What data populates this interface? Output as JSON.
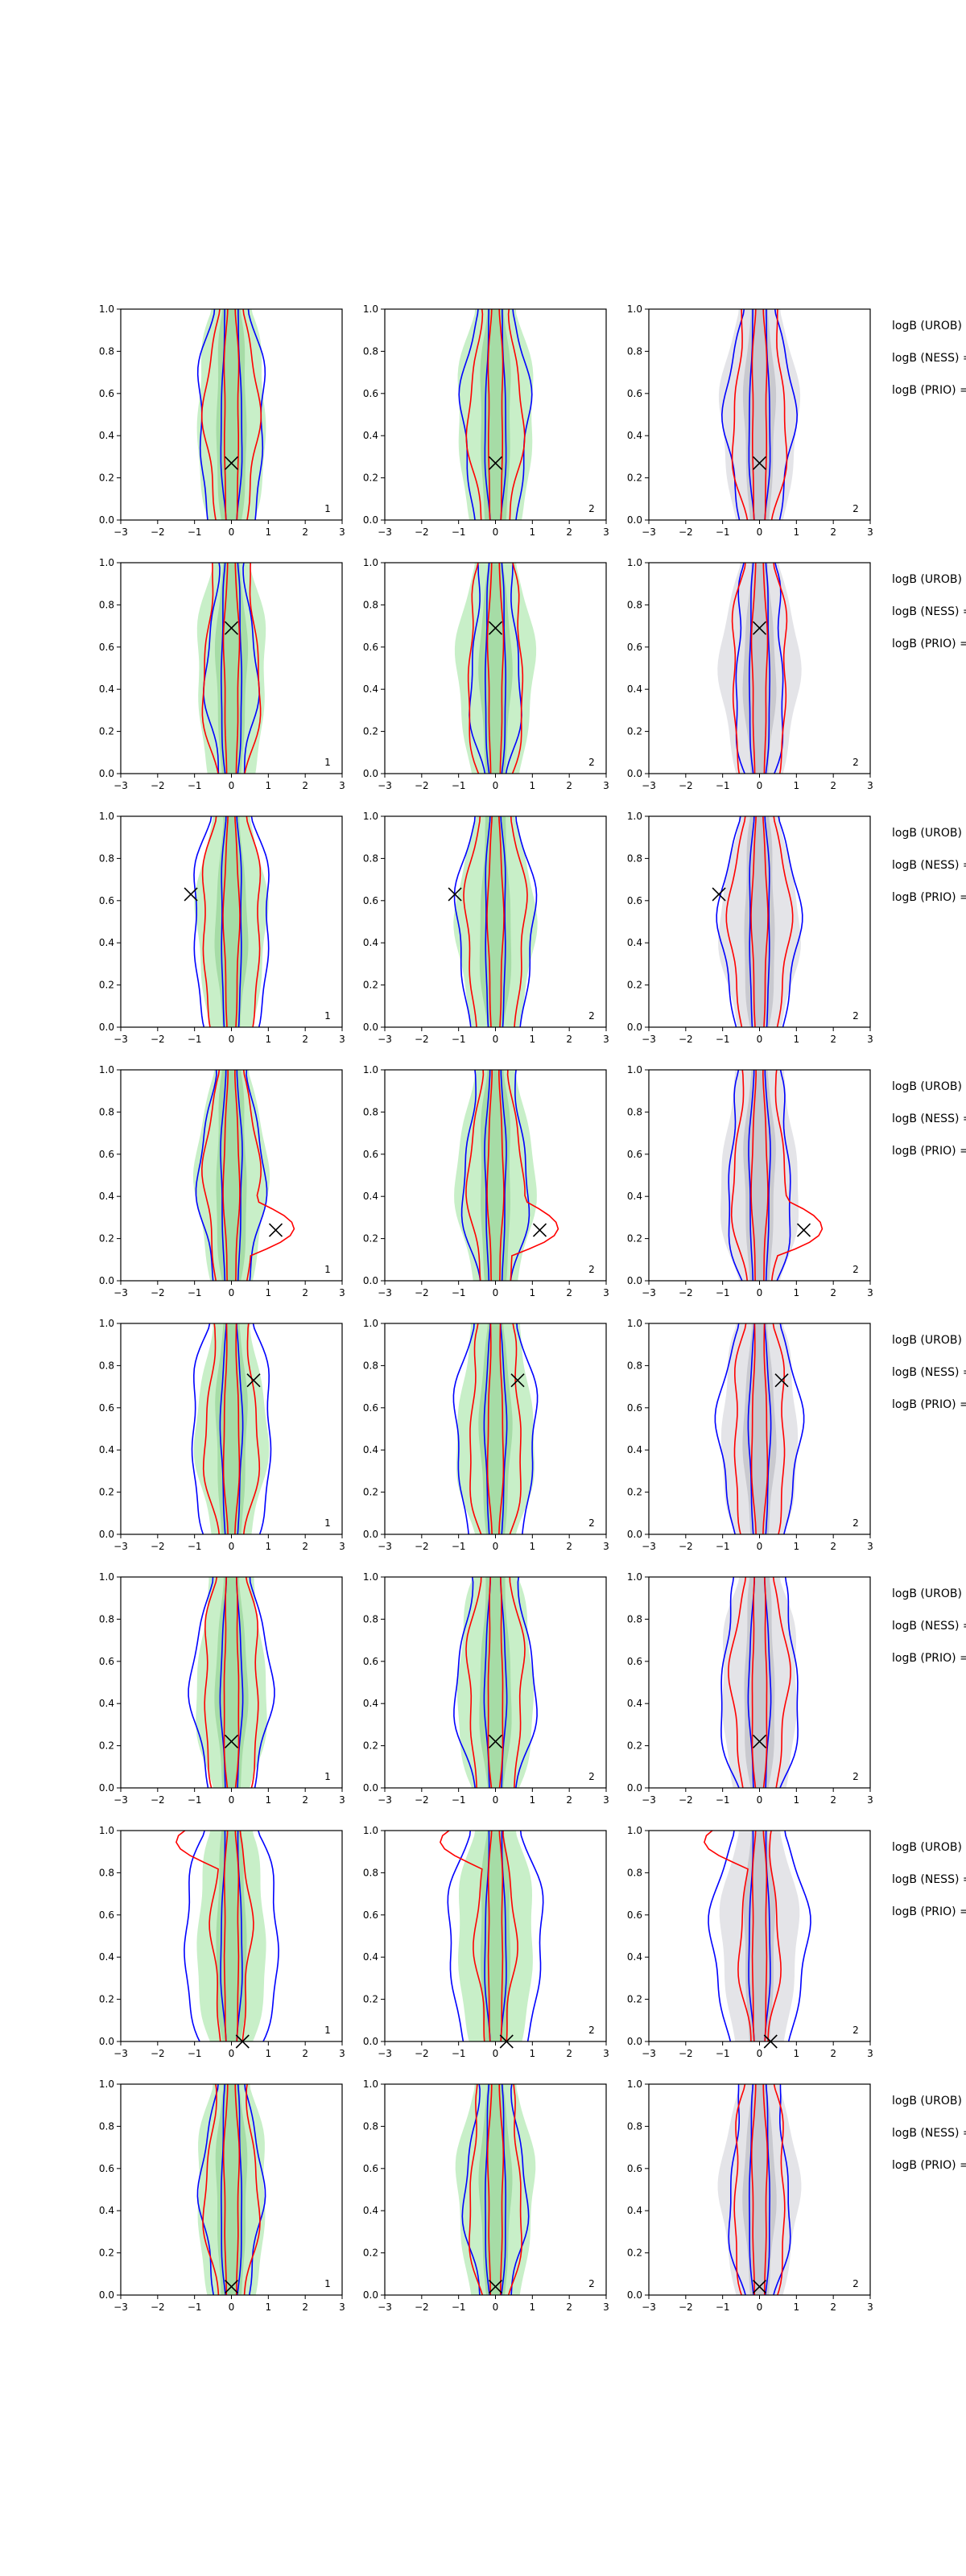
{
  "figure": {
    "colors": {
      "fill_green": "#c8efc8",
      "fill_green_dark": "#a6dca6",
      "fill_grey": "#e4e4e8",
      "fill_grey_dark": "#c9c9cf",
      "contour_blue": "#0000ff",
      "contour_red": "#ff0000",
      "marker": "#000000"
    },
    "side_labels": [
      "logB (UROB) =",
      "logB (NESS) =",
      "logB (PRIO) ="
    ]
  },
  "chart_data": {
    "type": "contour",
    "title": "",
    "xlabel": "",
    "ylabel": "",
    "xlim": [
      -3,
      3
    ],
    "ylim": [
      0,
      1
    ],
    "xticks": [
      "−3",
      "−2",
      "−1",
      "0",
      "1",
      "2",
      "3"
    ],
    "yticks": [
      "0.0",
      "0.2",
      "0.4",
      "0.6",
      "0.8",
      "1.0"
    ],
    "grid": false,
    "columns": [
      {
        "fill": "green",
        "tag": "1"
      },
      {
        "fill": "green",
        "tag": "2"
      },
      {
        "fill": "grey",
        "tag": "2"
      }
    ],
    "rows": [
      {
        "marker": [
          0.0,
          0.27
        ],
        "red_width": 0.7,
        "blue_width": 0.9,
        "red_bump": null
      },
      {
        "marker": [
          0.0,
          0.69
        ],
        "red_width": 0.75,
        "blue_width": 0.65,
        "red_bump": null
      },
      {
        "marker": [
          -1.1,
          0.63
        ],
        "red_width": 0.8,
        "blue_width": 1.05,
        "red_bump": null
      },
      {
        "marker": [
          1.2,
          0.24
        ],
        "red_width": 0.7,
        "blue_width": 0.85,
        "red_bump": [
          1.7,
          0.25
        ]
      },
      {
        "marker": [
          0.6,
          0.73
        ],
        "red_width": 0.7,
        "blue_width": 1.1,
        "red_bump": null
      },
      {
        "marker": [
          0.0,
          0.22
        ],
        "red_width": 0.75,
        "blue_width": 1.05,
        "red_bump": null
      },
      {
        "marker": [
          0.3,
          0.0
        ],
        "red_width": 0.5,
        "blue_width": 1.3,
        "red_bump": [
          -1.5,
          0.95
        ]
      },
      {
        "marker": [
          0.0,
          0.04
        ],
        "red_width": 0.7,
        "blue_width": 0.8,
        "red_bump": null
      }
    ]
  }
}
